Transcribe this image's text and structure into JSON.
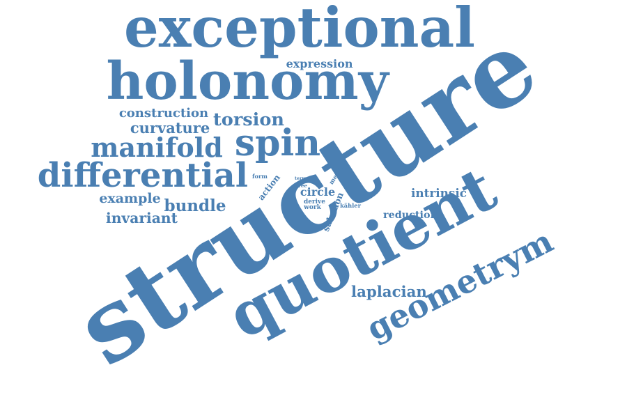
{
  "word_cloud": {
    "color": "#4a7fb2",
    "words": [
      "structure",
      "quotient",
      "exceptional",
      "holonomy",
      "spin",
      "differential",
      "geometrym",
      "manifold",
      "torsion",
      "curvature",
      "construction",
      "expression",
      "example",
      "bundle",
      "invariant",
      "intrinsic",
      "reduction",
      "laplacian",
      "action",
      "circle",
      "salamon",
      "metric",
      "form",
      "term",
      "free",
      "derive",
      "work",
      "kähler"
    ]
  }
}
